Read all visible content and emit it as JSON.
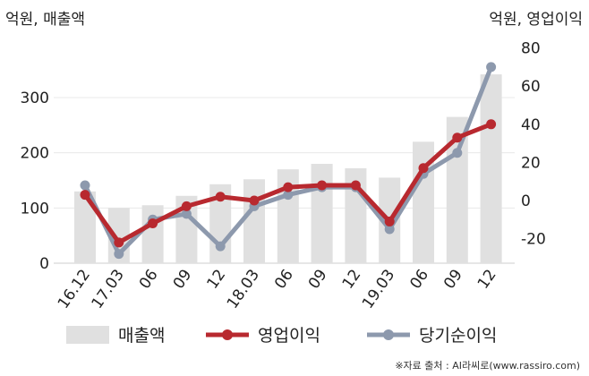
{
  "chart_data": {
    "type": "bar+line",
    "categories": [
      "16.12",
      "17.03",
      "06",
      "09",
      "12",
      "18.03",
      "06",
      "09",
      "12",
      "19.03",
      "06",
      "09",
      "12"
    ],
    "left_axis": {
      "label": "억원, 매출액",
      "ticks": [
        0,
        100,
        200,
        300
      ],
      "range": [
        0,
        370
      ]
    },
    "right_axis": {
      "label": "억원, 영업이익",
      "ticks": [
        -20,
        0,
        20,
        40,
        60,
        80
      ],
      "range": [
        -35,
        85
      ]
    },
    "series": [
      {
        "name": "매출액",
        "type": "bar",
        "axis": "left",
        "color": "#e0e0e0",
        "values": [
          130,
          100,
          105,
          122,
          143,
          152,
          170,
          180,
          172,
          155,
          220,
          265,
          342
        ]
      },
      {
        "name": "영업이익",
        "type": "line",
        "axis": "right",
        "color": "#b8292f",
        "values": [
          3,
          -22,
          -12,
          -3,
          2,
          0,
          7,
          8,
          8,
          -11,
          17,
          33,
          40
        ]
      },
      {
        "name": "당기순이익",
        "type": "line",
        "axis": "right",
        "color": "#8d99ad",
        "values": [
          8,
          -28,
          -10,
          -7,
          -24,
          -3,
          3,
          7,
          7,
          -15,
          14,
          25,
          70
        ]
      }
    ],
    "grid": "horizontal",
    "legend_position": "bottom"
  },
  "source_text": "※자료 출처 : AI라씨로(www.rassiro.com)"
}
